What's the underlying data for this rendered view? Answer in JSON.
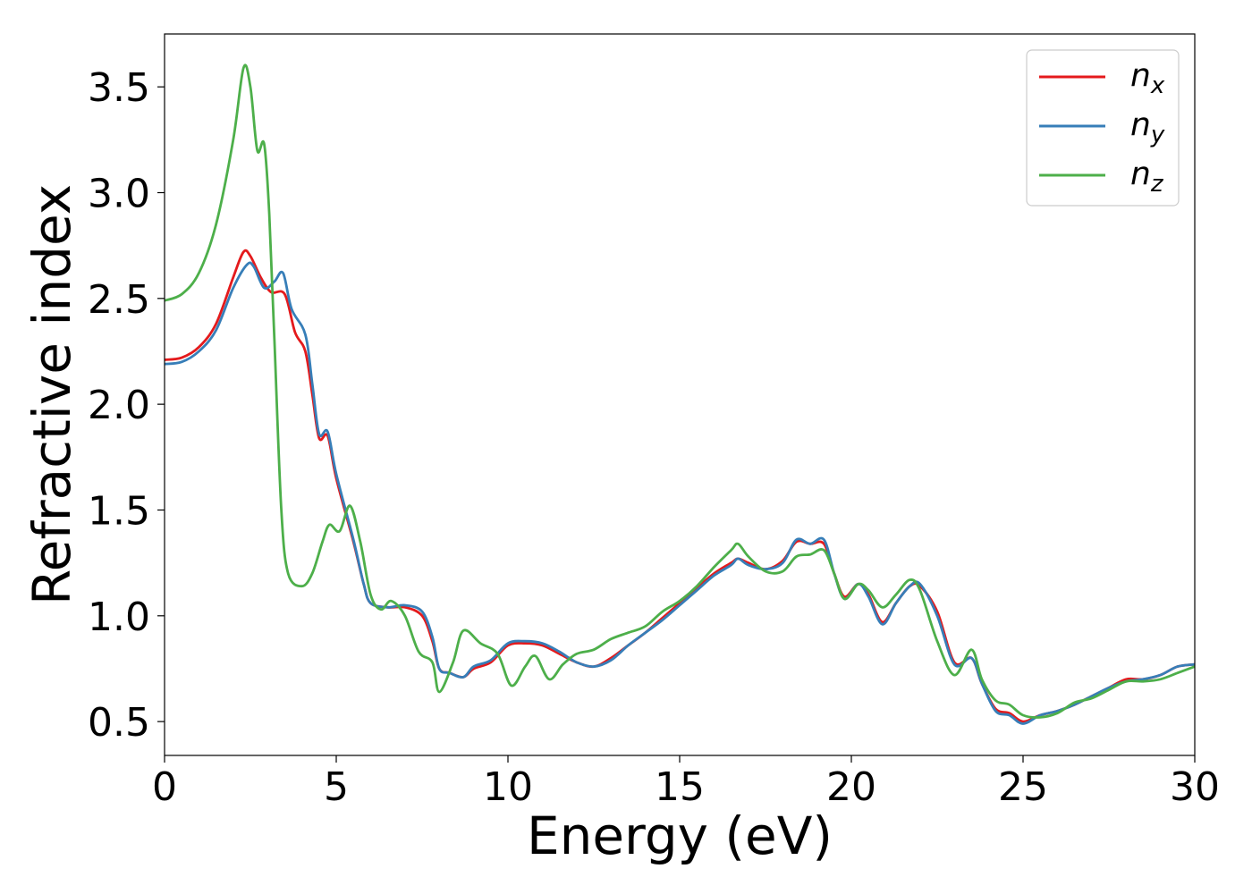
{
  "chart_data": {
    "type": "line",
    "xlabel": "Energy (eV)",
    "ylabel": "Refractive index",
    "xlim": [
      0,
      30
    ],
    "ylim": [
      0.34,
      3.75
    ],
    "xticks": [
      "0",
      "5",
      "10",
      "15",
      "20",
      "25",
      "30"
    ],
    "yticks": [
      "0.5",
      "1.0",
      "1.5",
      "2.0",
      "2.5",
      "3.0",
      "3.5"
    ],
    "grid": false,
    "legend_position": "top-right",
    "series": [
      {
        "name": "n",
        "subscript": "x",
        "color": "#e41a1c",
        "points": [
          [
            0,
            2.21
          ],
          [
            0.5,
            2.22
          ],
          [
            1,
            2.27
          ],
          [
            1.5,
            2.38
          ],
          [
            2,
            2.6
          ],
          [
            2.3,
            2.72
          ],
          [
            2.5,
            2.7
          ],
          [
            2.8,
            2.6
          ],
          [
            3.1,
            2.53
          ],
          [
            3.5,
            2.52
          ],
          [
            3.8,
            2.34
          ],
          [
            4.1,
            2.25
          ],
          [
            4.3,
            2.05
          ],
          [
            4.5,
            1.84
          ],
          [
            4.75,
            1.85
          ],
          [
            5,
            1.65
          ],
          [
            5.5,
            1.35
          ],
          [
            5.8,
            1.15
          ],
          [
            6,
            1.06
          ],
          [
            6.5,
            1.04
          ],
          [
            7,
            1.04
          ],
          [
            7.5,
            1.0
          ],
          [
            7.8,
            0.88
          ],
          [
            8,
            0.75
          ],
          [
            8.3,
            0.73
          ],
          [
            8.7,
            0.71
          ],
          [
            9,
            0.75
          ],
          [
            9.5,
            0.78
          ],
          [
            10,
            0.86
          ],
          [
            10.5,
            0.87
          ],
          [
            11,
            0.86
          ],
          [
            11.5,
            0.82
          ],
          [
            12,
            0.78
          ],
          [
            12.5,
            0.76
          ],
          [
            13,
            0.8
          ],
          [
            13.5,
            0.86
          ],
          [
            14,
            0.92
          ],
          [
            14.5,
            0.99
          ],
          [
            15,
            1.06
          ],
          [
            15.5,
            1.13
          ],
          [
            16,
            1.2
          ],
          [
            16.5,
            1.25
          ],
          [
            16.7,
            1.27
          ],
          [
            17,
            1.25
          ],
          [
            17.5,
            1.22
          ],
          [
            18,
            1.26
          ],
          [
            18.4,
            1.35
          ],
          [
            18.8,
            1.34
          ],
          [
            19.2,
            1.34
          ],
          [
            19.5,
            1.2
          ],
          [
            19.8,
            1.09
          ],
          [
            20.2,
            1.15
          ],
          [
            20.5,
            1.1
          ],
          [
            20.9,
            0.97
          ],
          [
            21.3,
            1.06
          ],
          [
            21.7,
            1.14
          ],
          [
            22,
            1.14
          ],
          [
            22.5,
            1.02
          ],
          [
            23,
            0.78
          ],
          [
            23.5,
            0.8
          ],
          [
            23.8,
            0.68
          ],
          [
            24.2,
            0.56
          ],
          [
            24.6,
            0.54
          ],
          [
            25,
            0.5
          ],
          [
            25.5,
            0.53
          ],
          [
            26,
            0.55
          ],
          [
            26.5,
            0.58
          ],
          [
            27,
            0.62
          ],
          [
            27.5,
            0.66
          ],
          [
            28,
            0.7
          ],
          [
            28.5,
            0.7
          ],
          [
            29,
            0.72
          ],
          [
            29.5,
            0.76
          ],
          [
            30,
            0.77
          ]
        ]
      },
      {
        "name": "n",
        "subscript": "y",
        "color": "#377eb8",
        "points": [
          [
            0,
            2.19
          ],
          [
            0.5,
            2.2
          ],
          [
            1,
            2.25
          ],
          [
            1.5,
            2.35
          ],
          [
            2,
            2.55
          ],
          [
            2.4,
            2.66
          ],
          [
            2.6,
            2.65
          ],
          [
            2.9,
            2.55
          ],
          [
            3.2,
            2.58
          ],
          [
            3.45,
            2.62
          ],
          [
            3.7,
            2.45
          ],
          [
            4.1,
            2.33
          ],
          [
            4.3,
            2.1
          ],
          [
            4.5,
            1.86
          ],
          [
            4.75,
            1.87
          ],
          [
            5,
            1.67
          ],
          [
            5.5,
            1.36
          ],
          [
            5.8,
            1.15
          ],
          [
            6,
            1.06
          ],
          [
            6.5,
            1.04
          ],
          [
            7,
            1.05
          ],
          [
            7.5,
            1.02
          ],
          [
            7.8,
            0.9
          ],
          [
            8,
            0.75
          ],
          [
            8.3,
            0.73
          ],
          [
            8.7,
            0.71
          ],
          [
            9,
            0.76
          ],
          [
            9.5,
            0.79
          ],
          [
            10,
            0.87
          ],
          [
            10.5,
            0.88
          ],
          [
            11,
            0.87
          ],
          [
            11.5,
            0.83
          ],
          [
            12,
            0.78
          ],
          [
            12.5,
            0.76
          ],
          [
            13,
            0.79
          ],
          [
            13.5,
            0.86
          ],
          [
            14,
            0.92
          ],
          [
            14.5,
            0.98
          ],
          [
            15,
            1.05
          ],
          [
            15.5,
            1.12
          ],
          [
            16,
            1.19
          ],
          [
            16.5,
            1.24
          ],
          [
            16.7,
            1.27
          ],
          [
            17,
            1.24
          ],
          [
            17.5,
            1.22
          ],
          [
            18,
            1.25
          ],
          [
            18.4,
            1.36
          ],
          [
            18.8,
            1.34
          ],
          [
            19.2,
            1.36
          ],
          [
            19.5,
            1.2
          ],
          [
            19.8,
            1.08
          ],
          [
            20.2,
            1.15
          ],
          [
            20.5,
            1.09
          ],
          [
            20.9,
            0.96
          ],
          [
            21.3,
            1.06
          ],
          [
            21.7,
            1.14
          ],
          [
            22,
            1.15
          ],
          [
            22.5,
            1.0
          ],
          [
            23,
            0.77
          ],
          [
            23.5,
            0.8
          ],
          [
            23.8,
            0.68
          ],
          [
            24.2,
            0.55
          ],
          [
            24.6,
            0.53
          ],
          [
            25,
            0.49
          ],
          [
            25.5,
            0.53
          ],
          [
            26,
            0.55
          ],
          [
            26.5,
            0.58
          ],
          [
            27,
            0.62
          ],
          [
            27.5,
            0.66
          ],
          [
            28,
            0.69
          ],
          [
            28.5,
            0.7
          ],
          [
            29,
            0.72
          ],
          [
            29.5,
            0.76
          ],
          [
            30,
            0.77
          ]
        ]
      },
      {
        "name": "n",
        "subscript": "z",
        "color": "#4daf4a",
        "points": [
          [
            0,
            2.49
          ],
          [
            0.5,
            2.52
          ],
          [
            1,
            2.62
          ],
          [
            1.5,
            2.85
          ],
          [
            2,
            3.25
          ],
          [
            2.3,
            3.59
          ],
          [
            2.5,
            3.5
          ],
          [
            2.7,
            3.2
          ],
          [
            2.9,
            3.23
          ],
          [
            3.05,
            2.9
          ],
          [
            3.2,
            2.3
          ],
          [
            3.4,
            1.5
          ],
          [
            3.6,
            1.2
          ],
          [
            4,
            1.14
          ],
          [
            4.3,
            1.2
          ],
          [
            4.6,
            1.35
          ],
          [
            4.8,
            1.43
          ],
          [
            5.1,
            1.4
          ],
          [
            5.4,
            1.52
          ],
          [
            5.7,
            1.35
          ],
          [
            6,
            1.1
          ],
          [
            6.3,
            1.03
          ],
          [
            6.6,
            1.07
          ],
          [
            7,
            1.0
          ],
          [
            7.4,
            0.83
          ],
          [
            7.8,
            0.78
          ],
          [
            8,
            0.64
          ],
          [
            8.4,
            0.78
          ],
          [
            8.7,
            0.93
          ],
          [
            9.2,
            0.87
          ],
          [
            9.7,
            0.82
          ],
          [
            10.1,
            0.67
          ],
          [
            10.5,
            0.76
          ],
          [
            10.8,
            0.81
          ],
          [
            11.2,
            0.7
          ],
          [
            11.6,
            0.77
          ],
          [
            12,
            0.82
          ],
          [
            12.5,
            0.84
          ],
          [
            13,
            0.89
          ],
          [
            13.5,
            0.92
          ],
          [
            14,
            0.95
          ],
          [
            14.5,
            1.02
          ],
          [
            15,
            1.07
          ],
          [
            15.5,
            1.14
          ],
          [
            16,
            1.23
          ],
          [
            16.5,
            1.31
          ],
          [
            16.7,
            1.34
          ],
          [
            17,
            1.28
          ],
          [
            17.5,
            1.21
          ],
          [
            18,
            1.21
          ],
          [
            18.4,
            1.28
          ],
          [
            18.8,
            1.29
          ],
          [
            19.2,
            1.31
          ],
          [
            19.5,
            1.2
          ],
          [
            19.8,
            1.08
          ],
          [
            20.2,
            1.15
          ],
          [
            20.5,
            1.12
          ],
          [
            20.9,
            1.04
          ],
          [
            21.3,
            1.1
          ],
          [
            21.7,
            1.17
          ],
          [
            22,
            1.12
          ],
          [
            22.5,
            0.88
          ],
          [
            23,
            0.72
          ],
          [
            23.5,
            0.84
          ],
          [
            23.8,
            0.7
          ],
          [
            24.2,
            0.6
          ],
          [
            24.6,
            0.58
          ],
          [
            25,
            0.53
          ],
          [
            25.5,
            0.52
          ],
          [
            26,
            0.54
          ],
          [
            26.5,
            0.59
          ],
          [
            27,
            0.61
          ],
          [
            27.5,
            0.65
          ],
          [
            28,
            0.69
          ],
          [
            28.5,
            0.69
          ],
          [
            29,
            0.7
          ],
          [
            29.5,
            0.73
          ],
          [
            30,
            0.76
          ]
        ]
      }
    ]
  }
}
